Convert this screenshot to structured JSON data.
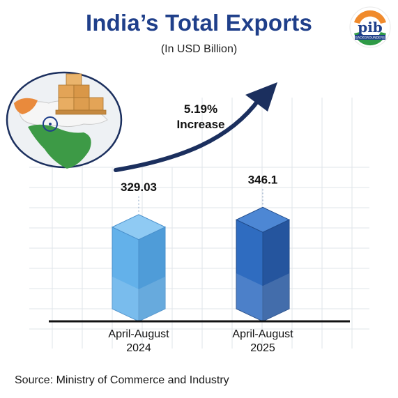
{
  "header": {
    "title": "India’s Total Exports",
    "subtitle": "(In USD Billion)",
    "logo_text": "pib",
    "logo_caption": "BACKGROUNDERS"
  },
  "chart_data": {
    "type": "bar",
    "categories": [
      "April-August\n2024",
      "April-August\n2025"
    ],
    "values": [
      329.03,
      346.1
    ],
    "value_labels": [
      "329.03",
      "346.1"
    ],
    "annotation": "5.19%\nIncrease",
    "title": "India’s Total Exports",
    "subtitle": "(In USD Billion)",
    "xlabel": "",
    "ylabel": "",
    "grid": true,
    "colors": {
      "bar_2024": "#5aaae6",
      "bar_2025": "#2f66b8",
      "arrow": "#1b2f5e"
    }
  },
  "footer": {
    "source": "Source: Ministry of Commerce and Industry"
  }
}
